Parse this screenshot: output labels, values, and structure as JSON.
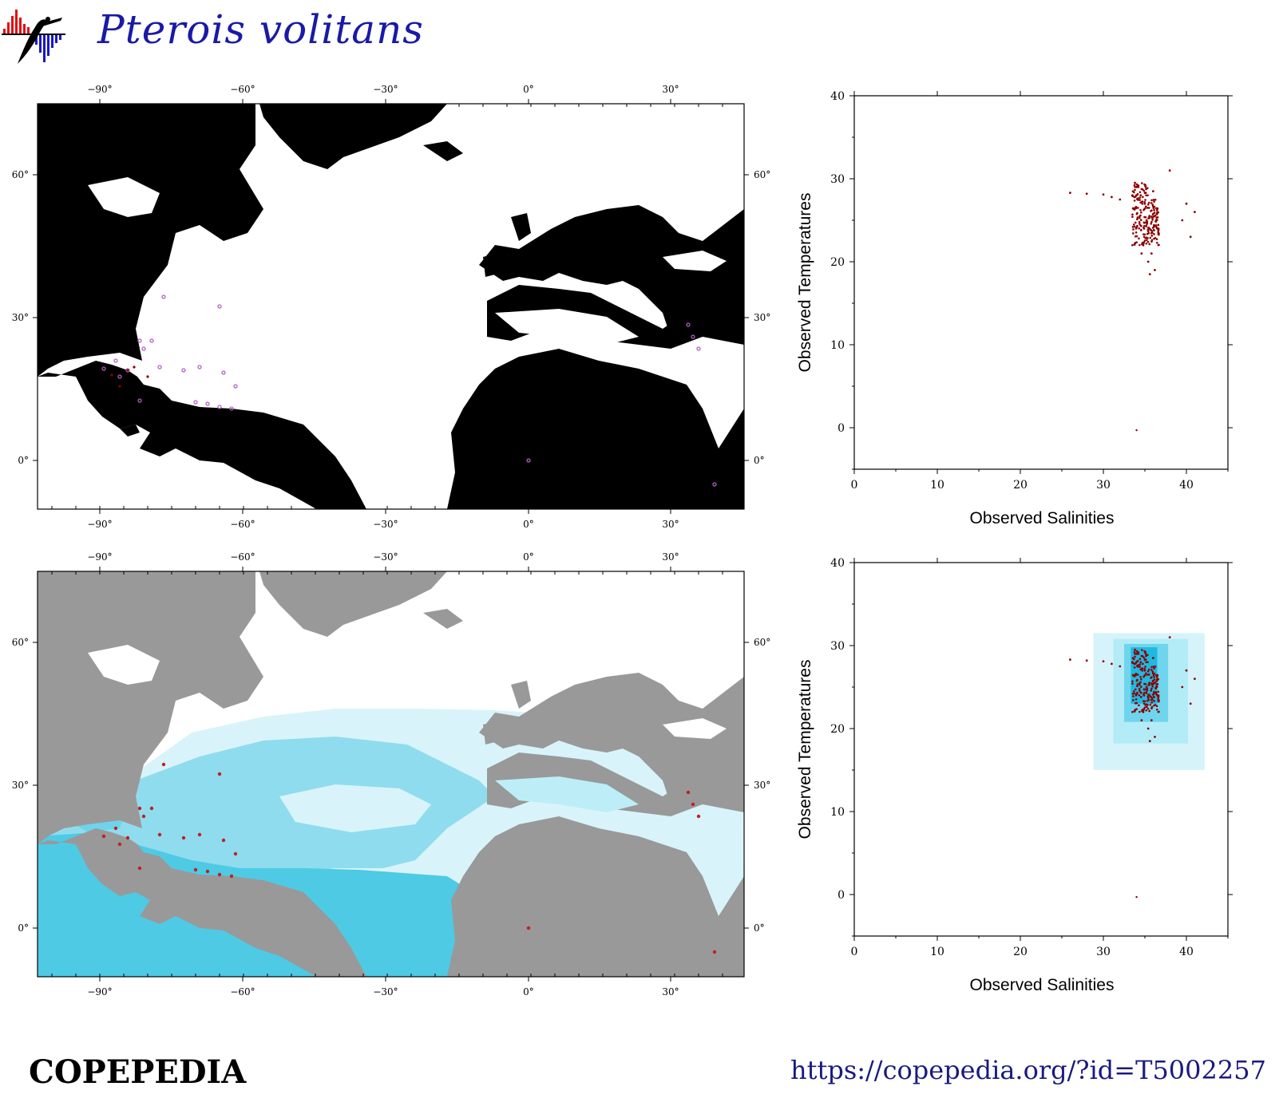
{
  "title": "Pterois volitans",
  "brand": "COPEPEDIA",
  "url": "https://copepedia.org/?id=T5002257",
  "maps": {
    "lon_ticks": [
      "−90°",
      "−60°",
      "−30°",
      "0°",
      "30°"
    ],
    "lat_ticks": [
      "60°",
      "30°",
      "0°"
    ],
    "occurrence_map": {
      "land": "#000000",
      "ocean": "#ffffff",
      "point_color": "#b060c0"
    },
    "habitat_map": {
      "land": "#999999",
      "ocean": "#ffffff",
      "habitat_colors": [
        "#e0f6fb",
        "#bdeef7",
        "#8fdff0",
        "#5fcfe6",
        "#2fbfdd"
      ],
      "point_color": "#c02020"
    }
  },
  "chart_data": [
    {
      "type": "scatter",
      "xlabel": "Observed Salinities",
      "ylabel": "Observed Temperatures",
      "xlim": [
        0,
        45
      ],
      "ylim": [
        -5,
        40
      ],
      "x_ticks": [
        "0",
        "10",
        "20",
        "30",
        "40"
      ],
      "y_ticks": [
        "40",
        "30",
        "20",
        "10",
        "0"
      ],
      "point_color": "#8b0000",
      "series": [
        {
          "x": [
            34.5,
            35,
            35.5,
            36,
            34,
            33.5,
            35.2,
            36.5,
            34.8,
            35.8,
            26,
            28,
            30,
            31,
            32,
            38,
            40,
            41,
            39.5,
            40.5,
            33.8,
            35.4,
            34.6,
            36.2,
            35.6
          ],
          "y": [
            28,
            27,
            26.5,
            28.5,
            29,
            28,
            25,
            24,
            22,
            21,
            28.3,
            28.2,
            28.1,
            27.8,
            27.5,
            31,
            27,
            26,
            25,
            23,
            29.5,
            20,
            21,
            19,
            18.5
          ]
        }
      ]
    },
    {
      "type": "scatter",
      "xlabel": "Observed Salinities",
      "ylabel": "Observed Temperatures",
      "xlim": [
        0,
        45
      ],
      "ylim": [
        -5,
        40
      ],
      "x_ticks": [
        "0",
        "10",
        "20",
        "30",
        "40"
      ],
      "y_ticks": [
        "40",
        "30",
        "20",
        "10",
        "0"
      ],
      "point_color": "#8b0000",
      "habitat_boxes": [
        {
          "smin": 28.8,
          "smax": 42.2,
          "tmin": 15,
          "tmax": 31.5,
          "color": "#d6f3fa"
        },
        {
          "smin": 31.2,
          "smax": 40.2,
          "tmin": 18.2,
          "tmax": 30.8,
          "color": "#b3ecf7"
        },
        {
          "smin": 32.5,
          "smax": 37.8,
          "tmin": 20.8,
          "tmax": 30.2,
          "color": "#6fd5ec"
        },
        {
          "smin": 33.3,
          "smax": 36.5,
          "tmin": 23,
          "tmax": 29.8,
          "color": "#1fb9e0"
        }
      ],
      "series": [
        {
          "x": [
            34.5,
            35,
            35.5,
            36,
            34,
            33.5,
            35.2,
            36.5,
            34.8,
            35.8,
            26,
            28,
            30,
            31,
            32,
            38,
            40,
            41,
            39.5,
            40.5,
            33.8,
            35.4,
            34.6,
            36.2,
            35.6
          ],
          "y": [
            28,
            27,
            26.5,
            28.5,
            29,
            28,
            25,
            24,
            22,
            21,
            28.3,
            28.2,
            28.1,
            27.8,
            27.5,
            31,
            27,
            26,
            25,
            23,
            29.5,
            20,
            21,
            19,
            18.5
          ]
        }
      ]
    }
  ]
}
